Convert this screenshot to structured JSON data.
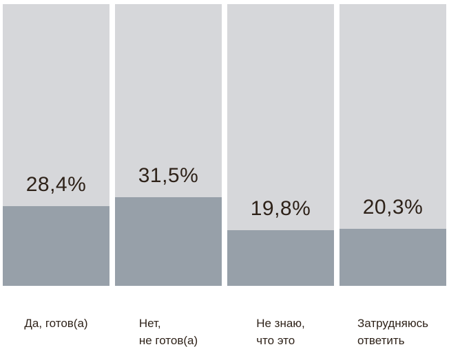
{
  "chart_data": {
    "type": "bar",
    "title": "",
    "xlabel": "",
    "ylabel": "",
    "ylim": [
      0,
      100
    ],
    "grid": false,
    "legend": false,
    "orientation": "vertical",
    "categories": [
      "Да, готов(а)",
      "Нет,\nне готов(а)",
      "Не знаю,\nчто это",
      "Затрудняюсь\nответить"
    ],
    "values": [
      28.4,
      31.5,
      19.8,
      20.3
    ],
    "value_labels": [
      "28,4%",
      "31,5%",
      "19,8%",
      "20,3%"
    ],
    "colors": {
      "track": "#d6d7da",
      "fill": "#97a0a9",
      "label_text": "#2e2219",
      "background": "#ffffff"
    }
  }
}
